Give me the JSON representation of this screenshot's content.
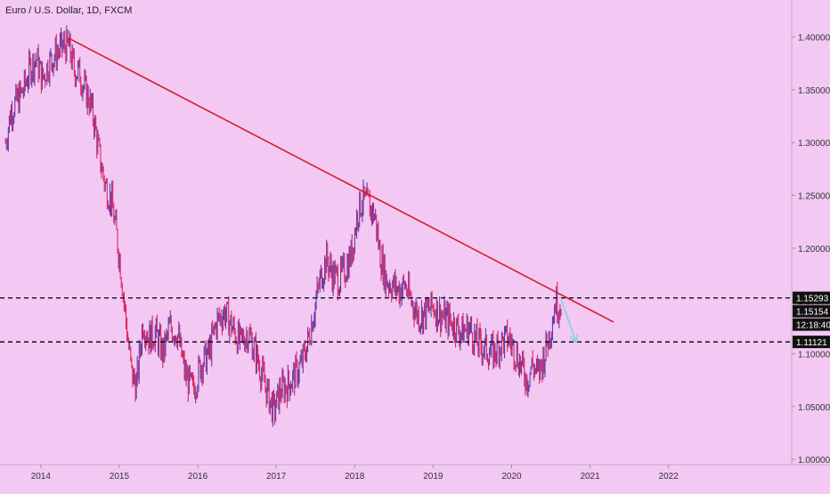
{
  "symbol_title": "Euro / U.S. Dollar, 1D, FXCM",
  "colors": {
    "background": "#f3c8f3",
    "candles_up": "#5b3fa8",
    "candles_down": "#e0245e",
    "trendline": "#d81b2a",
    "arrow": "#7fd3e8",
    "axis_text": "#333333",
    "label_bg": "#111111",
    "label_text": "#ffffff"
  },
  "chart_data": {
    "type": "candlestick",
    "x_axis": {
      "ticks": [
        "2014",
        "2015",
        "2016",
        "2017",
        "2018",
        "2019",
        "2020",
        "2021",
        "2022"
      ],
      "range": [
        2013.48,
        2023.57
      ]
    },
    "y_axis": {
      "ticks": [
        "1.40000",
        "1.35000",
        "1.30000",
        "1.25000",
        "1.20000",
        "1.15000",
        "1.10000",
        "1.05000",
        "1.00000"
      ],
      "range": [
        0.995,
        1.435
      ]
    },
    "series_path": [
      [
        2013.55,
        1.3
      ],
      [
        2013.62,
        1.33
      ],
      [
        2013.7,
        1.34
      ],
      [
        2013.78,
        1.35
      ],
      [
        2013.86,
        1.37
      ],
      [
        2013.94,
        1.38
      ],
      [
        2014.02,
        1.36
      ],
      [
        2014.1,
        1.375
      ],
      [
        2014.2,
        1.385
      ],
      [
        2014.3,
        1.392
      ],
      [
        2014.36,
        1.39
      ],
      [
        2014.42,
        1.37
      ],
      [
        2014.5,
        1.365
      ],
      [
        2014.56,
        1.35
      ],
      [
        2014.62,
        1.34
      ],
      [
        2014.68,
        1.32
      ],
      [
        2014.74,
        1.29
      ],
      [
        2014.82,
        1.26
      ],
      [
        2014.9,
        1.245
      ],
      [
        2014.97,
        1.21
      ],
      [
        2015.02,
        1.18
      ],
      [
        2015.06,
        1.15
      ],
      [
        2015.1,
        1.12
      ],
      [
        2015.16,
        1.08
      ],
      [
        2015.22,
        1.07
      ],
      [
        2015.3,
        1.13
      ],
      [
        2015.38,
        1.115
      ],
      [
        2015.46,
        1.12
      ],
      [
        2015.56,
        1.1
      ],
      [
        2015.64,
        1.125
      ],
      [
        2015.74,
        1.12
      ],
      [
        2015.84,
        1.08
      ],
      [
        2015.94,
        1.065
      ],
      [
        2016.04,
        1.09
      ],
      [
        2016.14,
        1.1
      ],
      [
        2016.24,
        1.13
      ],
      [
        2016.34,
        1.14
      ],
      [
        2016.44,
        1.125
      ],
      [
        2016.54,
        1.11
      ],
      [
        2016.64,
        1.12
      ],
      [
        2016.74,
        1.1
      ],
      [
        2016.82,
        1.08
      ],
      [
        2016.9,
        1.06
      ],
      [
        2016.97,
        1.045
      ],
      [
        2017.05,
        1.065
      ],
      [
        2017.14,
        1.07
      ],
      [
        2017.24,
        1.08
      ],
      [
        2017.32,
        1.09
      ],
      [
        2017.4,
        1.11
      ],
      [
        2017.48,
        1.14
      ],
      [
        2017.56,
        1.17
      ],
      [
        2017.64,
        1.19
      ],
      [
        2017.72,
        1.175
      ],
      [
        2017.8,
        1.17
      ],
      [
        2017.88,
        1.18
      ],
      [
        2017.96,
        1.195
      ],
      [
        2018.04,
        1.235
      ],
      [
        2018.1,
        1.245
      ],
      [
        2018.18,
        1.24
      ],
      [
        2018.26,
        1.23
      ],
      [
        2018.32,
        1.195
      ],
      [
        2018.4,
        1.17
      ],
      [
        2018.48,
        1.165
      ],
      [
        2018.56,
        1.16
      ],
      [
        2018.64,
        1.165
      ],
      [
        2018.72,
        1.15
      ],
      [
        2018.82,
        1.135
      ],
      [
        2018.92,
        1.14
      ],
      [
        2019.0,
        1.145
      ],
      [
        2019.12,
        1.135
      ],
      [
        2019.24,
        1.13
      ],
      [
        2019.36,
        1.12
      ],
      [
        2019.46,
        1.125
      ],
      [
        2019.56,
        1.11
      ],
      [
        2019.66,
        1.105
      ],
      [
        2019.76,
        1.1
      ],
      [
        2019.86,
        1.11
      ],
      [
        2019.96,
        1.115
      ],
      [
        2020.06,
        1.1
      ],
      [
        2020.14,
        1.085
      ],
      [
        2020.2,
        1.075
      ],
      [
        2020.26,
        1.09
      ],
      [
        2020.34,
        1.08
      ],
      [
        2020.42,
        1.1
      ],
      [
        2020.5,
        1.125
      ],
      [
        2020.56,
        1.15
      ],
      [
        2020.6,
        1.145
      ],
      [
        2020.63,
        1.152
      ]
    ],
    "trendline": {
      "from": [
        2014.35,
        1.399
      ],
      "to": [
        2021.3,
        1.13
      ]
    },
    "forecast_arrow": {
      "from": [
        2020.63,
        1.152
      ],
      "to": [
        2020.82,
        1.111
      ]
    },
    "horizontal_levels": [
      1.15293,
      1.11121
    ],
    "price_labels": [
      "1.15293",
      "1.15154",
      "12:18:40",
      "1.11121"
    ]
  }
}
